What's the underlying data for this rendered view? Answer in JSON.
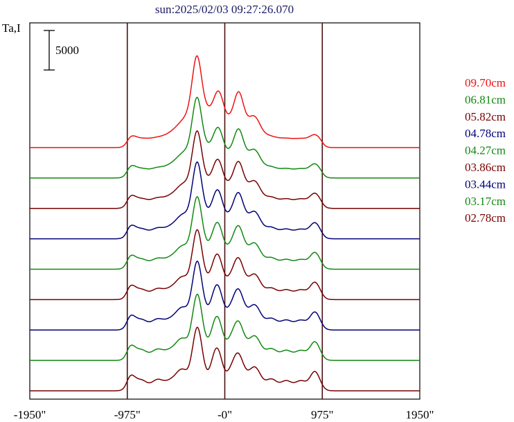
{
  "chart_data": {
    "type": "line",
    "title": "sun:2025/02/03 09:27:26.070",
    "ylabel": "Ta,I",
    "scale_bar_label": "5000",
    "scale_bar_value": 5000,
    "xlim": [
      -1950,
      1950
    ],
    "x_ticks": [
      -1950,
      -975,
      0,
      975,
      1950
    ],
    "x_tick_labels": [
      "-1950\"",
      "-975\"",
      "-0\"",
      "975\"",
      "1950\""
    ],
    "vertical_lines_x": [
      -975,
      0,
      975
    ],
    "series": [
      {
        "name": "09.70cm",
        "color": "#ee1111",
        "scale": 1.0,
        "ripple": 0.1
      },
      {
        "name": "06.81cm",
        "color": "#118811",
        "scale": 0.85,
        "ripple": 0.3
      },
      {
        "name": "05.82cm",
        "color": "#770000",
        "scale": 0.8,
        "ripple": 0.45
      },
      {
        "name": "04.78cm",
        "color": "#000077",
        "scale": 0.78,
        "ripple": 0.6
      },
      {
        "name": "04.27cm",
        "color": "#118811",
        "scale": 0.72,
        "ripple": 0.7
      },
      {
        "name": "03.86cm",
        "color": "#770000",
        "scale": 0.68,
        "ripple": 0.8
      },
      {
        "name": "03.44cm",
        "color": "#000077",
        "scale": 0.66,
        "ripple": 0.9
      },
      {
        "name": "03.17cm",
        "color": "#118811",
        "scale": 0.62,
        "ripple": 1.0
      },
      {
        "name": "02.78cm",
        "color": "#770000",
        "scale": 0.58,
        "ripple": 1.1
      }
    ]
  }
}
